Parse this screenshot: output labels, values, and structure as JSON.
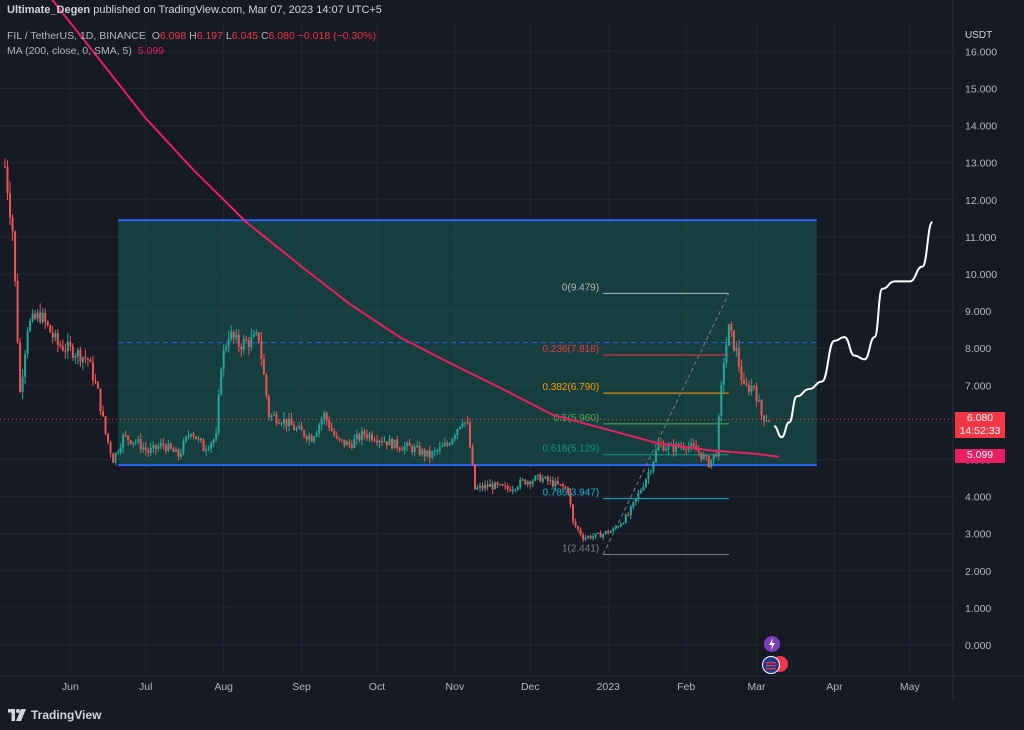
{
  "header": {
    "author": "Ultimate_Degen",
    "published_text": "published on TradingView.com, Mar 07, 2023 14:07 UTC+5"
  },
  "symbol_legend": {
    "symbol": "FIL / TetherUS, 1D, BINANCE",
    "open_label": "O",
    "open": "6.098",
    "high_label": "H",
    "high": "6.197",
    "low_label": "L",
    "low": "6.045",
    "close_label": "C",
    "close": "6.080",
    "change": "−0.018 (−0.30%)"
  },
  "ma_legend": {
    "label": "MA (200, close, 0, SMA, 5)",
    "value": "5.099"
  },
  "price_axis": {
    "unit": "USDT"
  },
  "price_tags": {
    "last_price": "6.080",
    "countdown": "14:52:33",
    "ma_value": "5.099"
  },
  "footer": {
    "brand": "TradingView"
  },
  "colors": {
    "background": "#161a25",
    "up": "#26a69a",
    "down": "#ef5350",
    "ma": "#e91e63",
    "channel_border": "#2962ff",
    "channel_fill": "#1a5c54",
    "fib_0": "#b2b5be",
    "fib_0236": "#f23645",
    "fib_0382": "#ff9800",
    "fib_05": "#4caf50",
    "fib_0618": "#089981",
    "fib_0786": "#00bcd4",
    "fib_1": "#787b86",
    "projection": "#ffffff"
  },
  "chart_data": {
    "type": "candlestick",
    "symbol": "FIL/USDT",
    "timeframe": "1D",
    "y_axis": {
      "ticks": [
        0,
        1,
        2,
        3,
        4,
        5,
        6,
        7,
        8,
        9,
        10,
        11,
        12,
        13,
        14,
        15,
        16
      ],
      "tick_labels": [
        "0.000",
        "1.000",
        "2.000",
        "3.000",
        "4.000",
        "5.000",
        "6.000",
        "7.000",
        "8.000",
        "9.000",
        "10.000",
        "11.000",
        "12.000",
        "13.000",
        "14.000",
        "15.000",
        "16.000"
      ],
      "range": [
        -0.2,
        16.8
      ]
    },
    "x_axis": {
      "tick_labels": [
        "Jun",
        "Jul",
        "Aug",
        "Sep",
        "Oct",
        "Nov",
        "Dec",
        "2023",
        "Feb",
        "Mar",
        "Apr",
        "May"
      ],
      "range": [
        "2022-05-06",
        "2023-05-15"
      ]
    },
    "price_series": [
      [
        "2022-05-06",
        12.9
      ],
      [
        "2022-05-09",
        11.2
      ],
      [
        "2022-05-12",
        6.8
      ],
      [
        "2022-05-15",
        8.6
      ],
      [
        "2022-05-20",
        8.9
      ],
      [
        "2022-05-27",
        8.1
      ],
      [
        "2022-06-03",
        7.9
      ],
      [
        "2022-06-08",
        7.7
      ],
      [
        "2022-06-12",
        6.8
      ],
      [
        "2022-06-15",
        5.7
      ],
      [
        "2022-06-18",
        5.0
      ],
      [
        "2022-06-22",
        5.6
      ],
      [
        "2022-06-27",
        5.5
      ],
      [
        "2022-07-02",
        5.2
      ],
      [
        "2022-07-08",
        5.4
      ],
      [
        "2022-07-14",
        5.1
      ],
      [
        "2022-07-19",
        5.8
      ],
      [
        "2022-07-24",
        5.3
      ],
      [
        "2022-07-29",
        5.6
      ],
      [
        "2022-07-31",
        7.6
      ],
      [
        "2022-08-03",
        8.4
      ],
      [
        "2022-08-07",
        8.1
      ],
      [
        "2022-08-12",
        8.2
      ],
      [
        "2022-08-15",
        8.3
      ],
      [
        "2022-08-19",
        6.2
      ],
      [
        "2022-08-24",
        6.1
      ],
      [
        "2022-08-30",
        5.8
      ],
      [
        "2022-09-05",
        5.6
      ],
      [
        "2022-09-10",
        6.2
      ],
      [
        "2022-09-15",
        5.5
      ],
      [
        "2022-09-20",
        5.4
      ],
      [
        "2022-09-26",
        5.7
      ],
      [
        "2022-10-01",
        5.6
      ],
      [
        "2022-10-08",
        5.4
      ],
      [
        "2022-10-15",
        5.3
      ],
      [
        "2022-10-22",
        5.1
      ],
      [
        "2022-10-29",
        5.4
      ],
      [
        "2022-11-04",
        6.1
      ],
      [
        "2022-11-06",
        5.9
      ],
      [
        "2022-11-09",
        4.2
      ],
      [
        "2022-11-15",
        4.3
      ],
      [
        "2022-11-22",
        4.2
      ],
      [
        "2022-11-28",
        4.4
      ],
      [
        "2022-12-05",
        4.5
      ],
      [
        "2022-12-12",
        4.3
      ],
      [
        "2022-12-16",
        4.2
      ],
      [
        "2022-12-18",
        3.3
      ],
      [
        "2022-12-22",
        2.9
      ],
      [
        "2022-12-28",
        2.95
      ],
      [
        "2023-01-03",
        3.1
      ],
      [
        "2023-01-09",
        3.5
      ],
      [
        "2023-01-14",
        4.2
      ],
      [
        "2023-01-18",
        4.8
      ],
      [
        "2023-01-21",
        5.4
      ],
      [
        "2023-01-26",
        5.3
      ],
      [
        "2023-02-01",
        5.4
      ],
      [
        "2023-02-06",
        5.2
      ],
      [
        "2023-02-10",
        4.9
      ],
      [
        "2023-02-13",
        5.2
      ],
      [
        "2023-02-16",
        7.7
      ],
      [
        "2023-02-18",
        8.5
      ],
      [
        "2023-02-21",
        7.9
      ],
      [
        "2023-02-24",
        6.9
      ],
      [
        "2023-02-28",
        7.0
      ],
      [
        "2023-03-03",
        6.2
      ],
      [
        "2023-03-06",
        6.08
      ]
    ],
    "ma_200": [
      [
        "2022-05-20",
        17.8
      ],
      [
        "2022-06-10",
        16.0
      ],
      [
        "2022-07-01",
        14.2
      ],
      [
        "2022-07-20",
        12.8
      ],
      [
        "2022-08-10",
        11.4
      ],
      [
        "2022-09-01",
        10.2
      ],
      [
        "2022-09-20",
        9.2
      ],
      [
        "2022-10-10",
        8.3
      ],
      [
        "2022-10-30",
        7.6
      ],
      [
        "2022-11-20",
        6.9
      ],
      [
        "2022-12-10",
        6.2
      ],
      [
        "2023-01-01",
        5.8
      ],
      [
        "2023-01-20",
        5.45
      ],
      [
        "2023-02-10",
        5.25
      ],
      [
        "2023-03-01",
        5.15
      ],
      [
        "2023-03-10",
        5.07
      ]
    ],
    "channel": {
      "top": 11.45,
      "bottom": 4.85,
      "mid": 8.15,
      "from": "2022-06-20",
      "to": "2023-03-25"
    },
    "fibonacci": {
      "from": "2022-12-30",
      "to": "2023-02-18",
      "levels": [
        {
          "label": "0(9.479)",
          "value": 9.479
        },
        {
          "label": "0.236(7.818)",
          "value": 7.818
        },
        {
          "label": "0.382(6.790)",
          "value": 6.79
        },
        {
          "label": "0.5(5.960)",
          "value": 5.96
        },
        {
          "label": "0.618(5.129)",
          "value": 5.129
        },
        {
          "label": "0.786(3.947)",
          "value": 3.947
        },
        {
          "label": "1(2.441)",
          "value": 2.441
        }
      ]
    },
    "projection": [
      [
        "2023-03-08",
        5.9
      ],
      [
        "2023-03-11",
        5.6
      ],
      [
        "2023-03-14",
        6.0
      ],
      [
        "2023-03-17",
        6.7
      ],
      [
        "2023-03-22",
        6.9
      ],
      [
        "2023-03-27",
        7.1
      ],
      [
        "2023-04-01",
        8.2
      ],
      [
        "2023-04-05",
        8.3
      ],
      [
        "2023-04-09",
        7.8
      ],
      [
        "2023-04-13",
        7.7
      ],
      [
        "2023-04-17",
        8.3
      ],
      [
        "2023-04-20",
        9.6
      ],
      [
        "2023-04-25",
        9.8
      ],
      [
        "2023-05-01",
        9.8
      ],
      [
        "2023-05-06",
        10.2
      ],
      [
        "2023-05-10",
        11.4
      ]
    ],
    "last_price": 6.08,
    "ma_last": 5.099
  }
}
